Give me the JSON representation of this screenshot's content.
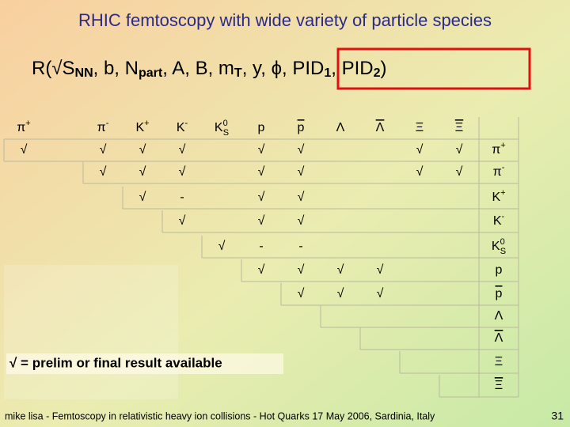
{
  "title": "RHIC femtoscopy with wide variety of particle species",
  "formula": {
    "plain": [
      "R(√S",
      "NN",
      ", b, N",
      "part",
      ", A, B, m",
      "T",
      ", y, "
    ],
    "boxed": [
      "ϕ, PID",
      "1",
      ", PID",
      "2",
      ")"
    ]
  },
  "table": {
    "headers": [
      {
        "base": "π",
        "sup": "+"
      },
      {
        "base": "π",
        "sup": "-"
      },
      {
        "base": "K",
        "sup": "+"
      },
      {
        "base": "K",
        "sup": "-"
      },
      {
        "base": "K",
        "sup": "0",
        "sub": "S"
      },
      {
        "base": "p"
      },
      {
        "base": "p",
        "bar": true
      },
      {
        "base": "Λ"
      },
      {
        "base": "Λ",
        "bar": true
      },
      {
        "base": "Ξ"
      },
      {
        "base": "Ξ",
        "bar": true
      }
    ],
    "rows": [
      {
        "label": {
          "base": "π",
          "sup": "+"
        },
        "cells": [
          "√",
          "√",
          "√",
          "√",
          null,
          "√",
          "√",
          null,
          null,
          "√",
          "√"
        ]
      },
      {
        "label": {
          "base": "π",
          "sup": "-"
        },
        "cells": [
          null,
          "√",
          "√",
          "√",
          null,
          "√",
          "√",
          null,
          null,
          "√",
          "√"
        ]
      },
      {
        "label": {
          "base": "K",
          "sup": "+"
        },
        "cells": [
          null,
          null,
          "√",
          "-",
          null,
          "√",
          "√",
          null,
          null,
          null,
          null
        ]
      },
      {
        "label": {
          "base": "K",
          "sup": "-"
        },
        "cells": [
          null,
          null,
          null,
          "√",
          null,
          "√",
          "√",
          null,
          null,
          null,
          null
        ]
      },
      {
        "label": {
          "base": "K",
          "sup": "0",
          "sub": "S"
        },
        "cells": [
          null,
          null,
          null,
          null,
          "√",
          "-",
          "-",
          null,
          null,
          null,
          null
        ]
      },
      {
        "label": {
          "base": "p"
        },
        "cells": [
          null,
          null,
          null,
          null,
          null,
          "√",
          "√",
          "√",
          "√",
          null,
          null
        ]
      },
      {
        "label": {
          "base": "p",
          "bar": true
        },
        "cells": [
          null,
          null,
          null,
          null,
          null,
          null,
          "√",
          "√",
          "√",
          null,
          null
        ]
      },
      {
        "label": {
          "base": "Λ"
        },
        "cells": [
          null,
          null,
          null,
          null,
          null,
          null,
          null,
          null,
          null,
          null,
          null
        ]
      },
      {
        "label": {
          "base": "Λ",
          "bar": true
        },
        "cells": [
          null,
          null,
          null,
          null,
          null,
          null,
          null,
          null,
          null,
          null,
          null
        ]
      },
      {
        "label": {
          "base": "Ξ"
        },
        "cells": [
          null,
          null,
          null,
          null,
          null,
          null,
          null,
          null,
          null,
          null,
          null
        ]
      },
      {
        "label": {
          "base": "Ξ",
          "bar": true
        },
        "cells": [
          null,
          null,
          null,
          null,
          null,
          null,
          null,
          null,
          null,
          null,
          null
        ]
      }
    ]
  },
  "note": "√ = prelim or final result available",
  "footer": "mike lisa - Femtoscopy in relativistic heavy ion collisions - Hot Quarks 17 May 2006, Sardinia, Italy",
  "page_number": "31"
}
